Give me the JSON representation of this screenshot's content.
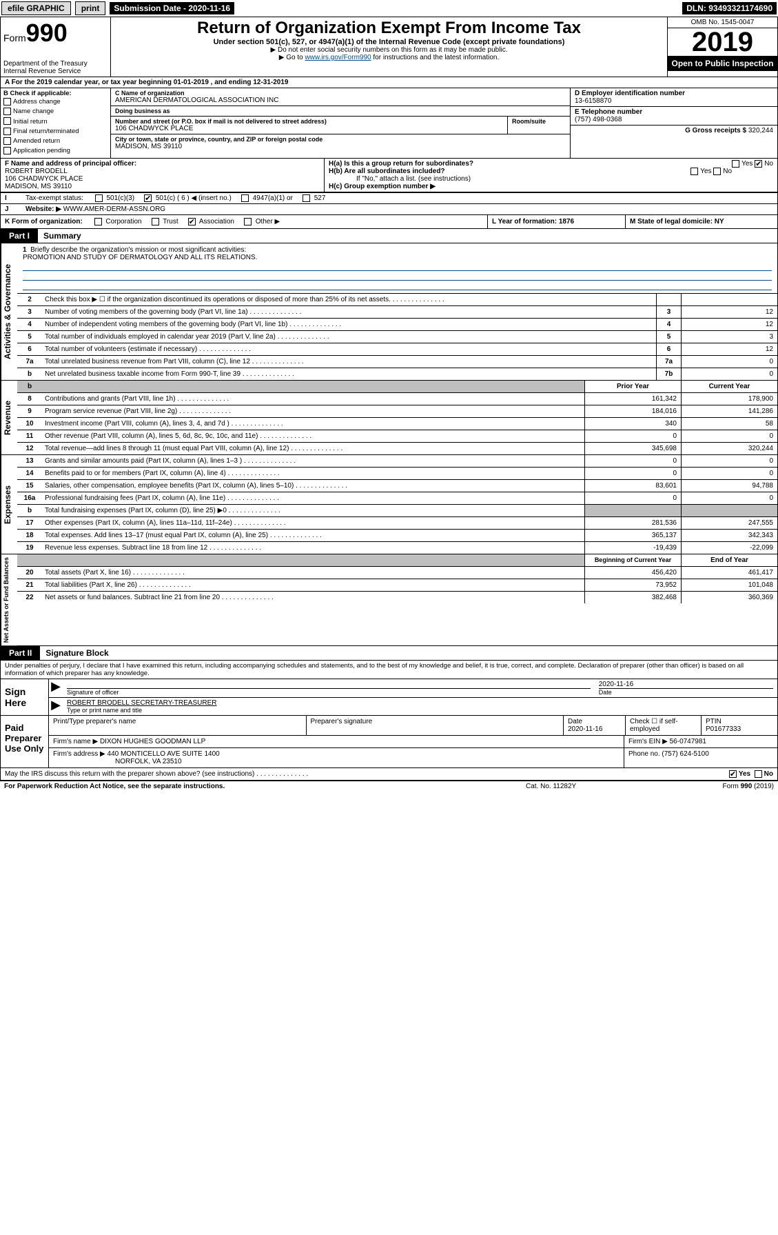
{
  "topbar": {
    "efile": "efile GRAPHIC",
    "print": "print",
    "sub_label": "Submission Date - 2020-11-16",
    "dln_label": "DLN: 93493321174690"
  },
  "header": {
    "form_word": "Form",
    "form_num": "990",
    "dept": "Department of the Treasury\nInternal Revenue Service",
    "title": "Return of Organization Exempt From Income Tax",
    "sub1": "Under section 501(c), 527, or 4947(a)(1) of the Internal Revenue Code (except private foundations)",
    "sub2a": "▶ Do not enter social security numbers on this form as it may be made public.",
    "sub2b_pre": "▶ Go to ",
    "sub2b_link": "www.irs.gov/Form990",
    "sub2b_post": " for instructions and the latest information.",
    "omb": "OMB No. 1545-0047",
    "year": "2019",
    "open": "Open to Public Inspection"
  },
  "a": {
    "text": "A For the 2019 calendar year, or tax year beginning 01-01-2019   , and ending 12-31-2019"
  },
  "b": {
    "head": "B Check if applicable:",
    "items": [
      "Address change",
      "Name change",
      "Initial return",
      "Final return/terminated",
      "Amended return",
      "Application pending"
    ]
  },
  "c": {
    "name_label": "C Name of organization",
    "name": "AMERICAN DERMATOLOGICAL ASSOCIATION INC",
    "dba_label": "Doing business as",
    "dba": "",
    "addr_label": "Number and street (or P.O. box if mail is not delivered to street address)",
    "room_label": "Room/suite",
    "addr": "106 CHADWYCK PLACE",
    "city_label": "City or town, state or province, country, and ZIP or foreign postal code",
    "city": "MADISON, MS  39110"
  },
  "d": {
    "label": "D Employer identification number",
    "val": "13-6158870"
  },
  "e": {
    "label": "E Telephone number",
    "val": "(757) 498-0368"
  },
  "g": {
    "label": "G Gross receipts $",
    "val": "320,244"
  },
  "f": {
    "label": "F  Name and address of principal officer:",
    "name": "ROBERT BRODELL",
    "addr1": "106 CHADWYCK PLACE",
    "addr2": "MADISON, MS  39110"
  },
  "h": {
    "a": "H(a)  Is this a group return for subordinates?",
    "a_yes": "Yes",
    "a_no": "No",
    "b": "H(b)  Are all subordinates included?",
    "b_yes": "Yes",
    "b_no": "No",
    "b_note": "If \"No,\" attach a list. (see instructions)",
    "c": "H(c)  Group exemption number ▶"
  },
  "i": {
    "label": "I",
    "text": "Tax-exempt status:",
    "opts": [
      "501(c)(3)",
      "501(c) ( 6 ) ◀ (insert no.)",
      "4947(a)(1) or",
      "527"
    ]
  },
  "j": {
    "label": "J",
    "text": "Website: ▶",
    "val": "WWW.AMER-DERM-ASSN.ORG"
  },
  "k": {
    "text": "K Form of organization:",
    "opts": [
      "Corporation",
      "Trust",
      "Association",
      "Other ▶"
    ]
  },
  "l": {
    "text": "L Year of formation: 1876"
  },
  "m": {
    "text": "M State of legal domicile: NY"
  },
  "part1": {
    "tab": "Part I",
    "title": "Summary"
  },
  "mission": {
    "num": "1",
    "label": "Briefly describe the organization's mission or most significant activities:",
    "text": "PROMOTION AND STUDY OF DERMATOLOGY AND ALL ITS RELATIONS."
  },
  "gov_lines": [
    {
      "n": "2",
      "d": "Check this box ▶ ☐  if the organization discontinued its operations or disposed of more than 25% of its net assets.",
      "box": "",
      "v": ""
    },
    {
      "n": "3",
      "d": "Number of voting members of the governing body (Part VI, line 1a)",
      "box": "3",
      "v": "12"
    },
    {
      "n": "4",
      "d": "Number of independent voting members of the governing body (Part VI, line 1b)",
      "box": "4",
      "v": "12"
    },
    {
      "n": "5",
      "d": "Total number of individuals employed in calendar year 2019 (Part V, line 2a)",
      "box": "5",
      "v": "3"
    },
    {
      "n": "6",
      "d": "Total number of volunteers (estimate if necessary)",
      "box": "6",
      "v": "12"
    },
    {
      "n": "7a",
      "d": "Total unrelated business revenue from Part VIII, column (C), line 12",
      "box": "7a",
      "v": "0"
    },
    {
      "n": "b",
      "d": "Net unrelated business taxable income from Form 990-T, line 39",
      "box": "7b",
      "v": "0"
    }
  ],
  "col_hdr": {
    "prior": "Prior Year",
    "current": "Current Year"
  },
  "rev_lines": [
    {
      "n": "8",
      "d": "Contributions and grants (Part VIII, line 1h)",
      "p": "161,342",
      "c": "178,900"
    },
    {
      "n": "9",
      "d": "Program service revenue (Part VIII, line 2g)",
      "p": "184,016",
      "c": "141,286"
    },
    {
      "n": "10",
      "d": "Investment income (Part VIII, column (A), lines 3, 4, and 7d )",
      "p": "340",
      "c": "58"
    },
    {
      "n": "11",
      "d": "Other revenue (Part VIII, column (A), lines 5, 6d, 8c, 9c, 10c, and 11e)",
      "p": "0",
      "c": "0"
    },
    {
      "n": "12",
      "d": "Total revenue—add lines 8 through 11 (must equal Part VIII, column (A), line 12)",
      "p": "345,698",
      "c": "320,244"
    }
  ],
  "exp_lines": [
    {
      "n": "13",
      "d": "Grants and similar amounts paid (Part IX, column (A), lines 1–3 )",
      "p": "0",
      "c": "0"
    },
    {
      "n": "14",
      "d": "Benefits paid to or for members (Part IX, column (A), line 4)",
      "p": "0",
      "c": "0"
    },
    {
      "n": "15",
      "d": "Salaries, other compensation, employee benefits (Part IX, column (A), lines 5–10)",
      "p": "83,601",
      "c": "94,788"
    },
    {
      "n": "16a",
      "d": "Professional fundraising fees (Part IX, column (A), line 11e)",
      "p": "0",
      "c": "0"
    },
    {
      "n": "b",
      "d": "Total fundraising expenses (Part IX, column (D), line 25) ▶0",
      "p": "",
      "c": "",
      "grey": true
    },
    {
      "n": "17",
      "d": "Other expenses (Part IX, column (A), lines 11a–11d, 11f–24e)",
      "p": "281,536",
      "c": "247,555"
    },
    {
      "n": "18",
      "d": "Total expenses. Add lines 13–17 (must equal Part IX, column (A), line 25)",
      "p": "365,137",
      "c": "342,343"
    },
    {
      "n": "19",
      "d": "Revenue less expenses. Subtract line 18 from line 12",
      "p": "-19,439",
      "c": "-22,099"
    }
  ],
  "na_hdr": {
    "begin": "Beginning of Current Year",
    "end": "End of Year"
  },
  "na_lines": [
    {
      "n": "20",
      "d": "Total assets (Part X, line 16)",
      "p": "456,420",
      "c": "461,417"
    },
    {
      "n": "21",
      "d": "Total liabilities (Part X, line 26)",
      "p": "73,952",
      "c": "101,048"
    },
    {
      "n": "22",
      "d": "Net assets or fund balances. Subtract line 21 from line 20",
      "p": "382,468",
      "c": "360,369"
    }
  ],
  "part2": {
    "tab": "Part II",
    "title": "Signature Block"
  },
  "decl": "Under penalties of perjury, I declare that I have examined this return, including accompanying schedules and statements, and to the best of my knowledge and belief, it is true, correct, and complete. Declaration of preparer (other than officer) is based on all information of which preparer has any knowledge.",
  "sign": {
    "left": "Sign Here",
    "sig_label": "Signature of officer",
    "date": "2020-11-16",
    "date_label": "Date",
    "name": "ROBERT BRODELL  SECRETARY-TREASURER",
    "name_label": "Type or print name and title"
  },
  "paid": {
    "left": "Paid Preparer Use Only",
    "h1": "Print/Type preparer's name",
    "h2": "Preparer's signature",
    "h3": "Date",
    "h3v": "2020-11-16",
    "h4": "Check ☐ if self-employed",
    "h5": "PTIN",
    "h5v": "P01677333",
    "firm_label": "Firm's name    ▶",
    "firm": "DIXON HUGHES GOODMAN LLP",
    "ein_label": "Firm's EIN ▶",
    "ein": "56-0747981",
    "addr_label": "Firm's address ▶",
    "addr1": "440 MONTICELLO AVE SUITE 1400",
    "addr2": "NORFOLK, VA  23510",
    "phone_label": "Phone no.",
    "phone": "(757) 624-5100"
  },
  "discuss": {
    "q": "May the IRS discuss this return with the preparer shown above? (see instructions)",
    "yes": "Yes",
    "no": "No"
  },
  "footer": {
    "l": "For Paperwork Reduction Act Notice, see the separate instructions.",
    "m": "Cat. No. 11282Y",
    "r": "Form 990 (2019)"
  },
  "vert": {
    "gov": "Activities & Governance",
    "rev": "Revenue",
    "exp": "Expenses",
    "na": "Net Assets or Fund Balances"
  }
}
